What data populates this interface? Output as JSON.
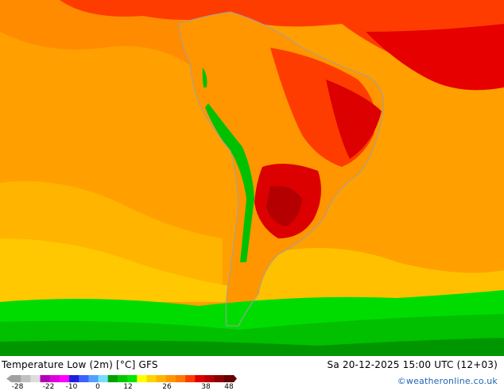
{
  "title": "Temperature Low (2m) [°C] GFS",
  "datetime": "Sa 20-12-2025 15:00 UTC (12+03)",
  "credit": "©weatheronline.co.uk",
  "legend": {
    "colors": [
      "#a0a0a0",
      "#c0c0c0",
      "#dcdcdc",
      "#b400b4",
      "#dc00dc",
      "#ff00ff",
      "#1e1edc",
      "#3c64ff",
      "#50a0ff",
      "#78dcff",
      "#00a000",
      "#00c800",
      "#00e600",
      "#ffff00",
      "#ffd200",
      "#ffb400",
      "#ff9600",
      "#ff7800",
      "#ff3c00",
      "#dc0000",
      "#b40000",
      "#8c0000",
      "#640000"
    ],
    "ticks": [
      "-28",
      "-22",
      "-10",
      "0",
      "12",
      "26",
      "38",
      "48"
    ]
  },
  "palette": {
    "ocean_warm": "#ffa000",
    "ocean_mid": "#ffb400",
    "ocean_cool": "#ffd200",
    "hot": "#ff3c00",
    "very_hot": "#dc0000",
    "extreme": "#b40000",
    "green_bright": "#00dc00",
    "green_mid": "#00c000",
    "green_dark": "#009600",
    "snow_grey": "#b4b4b4",
    "coast": "#a0a0a0"
  }
}
